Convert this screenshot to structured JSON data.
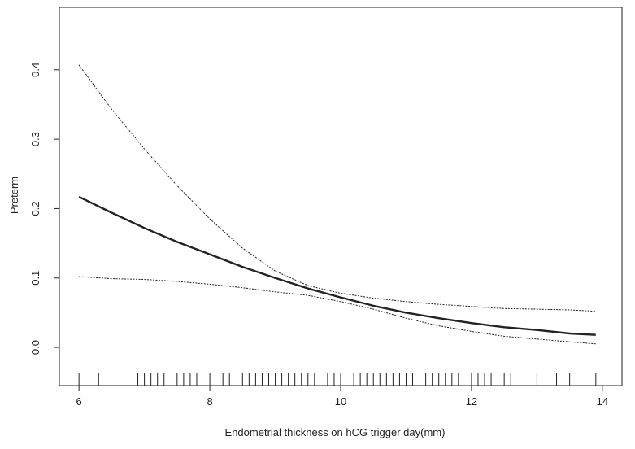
{
  "chart_data": {
    "type": "line",
    "title": "",
    "xlabel": "Endometrial thickness on hCG trigger day(mm)",
    "ylabel": "Preterm",
    "xlim": [
      5.7,
      14.3
    ],
    "ylim": [
      -0.055,
      0.49
    ],
    "x_ticks": [
      6,
      8,
      10,
      12,
      14
    ],
    "x_tick_labels": [
      "6",
      "8",
      "10",
      "12",
      "14"
    ],
    "y_ticks": [
      0.0,
      0.1,
      0.2,
      0.3,
      0.4
    ],
    "y_tick_labels": [
      "0.0",
      "0.1",
      "0.2",
      "0.3",
      "0.4"
    ],
    "grid": false,
    "legend": "none",
    "series": [
      {
        "role": "estimate",
        "line_style": "solid",
        "color": "#222222",
        "x": [
          6.0,
          6.5,
          7.0,
          7.5,
          8.0,
          8.5,
          9.0,
          9.5,
          10.0,
          10.5,
          11.0,
          11.5,
          12.0,
          12.5,
          13.0,
          13.5,
          13.9
        ],
        "y": [
          0.217,
          0.194,
          0.172,
          0.152,
          0.134,
          0.116,
          0.1,
          0.085,
          0.072,
          0.06,
          0.05,
          0.042,
          0.035,
          0.029,
          0.025,
          0.02,
          0.018
        ]
      },
      {
        "role": "upper",
        "line_style": "dotted",
        "color": "#222222",
        "x": [
          6.0,
          6.5,
          7.0,
          7.5,
          8.0,
          8.5,
          9.0,
          9.5,
          10.0,
          10.5,
          11.0,
          11.5,
          12.0,
          12.5,
          13.0,
          13.5,
          13.9
        ],
        "y": [
          0.407,
          0.343,
          0.286,
          0.233,
          0.185,
          0.143,
          0.11,
          0.089,
          0.078,
          0.071,
          0.066,
          0.062,
          0.059,
          0.056,
          0.055,
          0.054,
          0.052
        ]
      },
      {
        "role": "lower",
        "line_style": "dotted",
        "color": "#222222",
        "x": [
          6.0,
          6.5,
          7.0,
          7.5,
          8.0,
          8.5,
          9.0,
          9.5,
          10.0,
          10.5,
          11.0,
          11.5,
          12.0,
          12.5,
          13.0,
          13.5,
          13.9
        ],
        "y": [
          0.102,
          0.099,
          0.098,
          0.095,
          0.091,
          0.086,
          0.08,
          0.075,
          0.066,
          0.055,
          0.042,
          0.031,
          0.023,
          0.016,
          0.012,
          0.008,
          0.005
        ]
      }
    ],
    "rug": [
      6.0,
      6.3,
      6.9,
      7.0,
      7.1,
      7.2,
      7.3,
      7.5,
      7.6,
      7.7,
      7.8,
      8.0,
      8.2,
      8.3,
      8.5,
      8.6,
      8.7,
      8.8,
      8.9,
      9.0,
      9.1,
      9.2,
      9.3,
      9.4,
      9.5,
      9.6,
      9.8,
      9.9,
      10.0,
      10.2,
      10.3,
      10.4,
      10.5,
      10.6,
      10.7,
      10.8,
      10.9,
      11.0,
      11.1,
      11.3,
      11.4,
      11.5,
      11.6,
      11.7,
      11.8,
      12.0,
      12.1,
      12.2,
      12.3,
      12.5,
      12.6,
      13.0,
      13.3,
      13.5,
      13.9
    ]
  }
}
